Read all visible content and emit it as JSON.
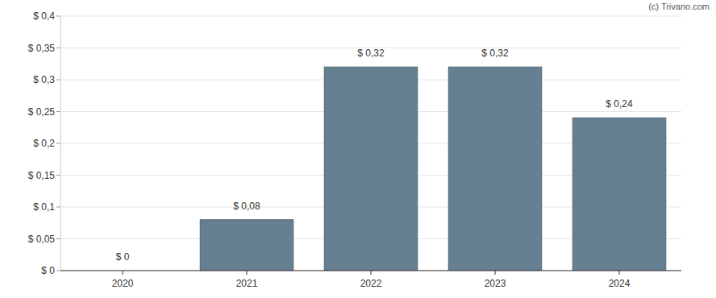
{
  "chart_data": {
    "type": "bar",
    "categories": [
      "2020",
      "2021",
      "2022",
      "2023",
      "2024"
    ],
    "values": [
      0,
      0.08,
      0.32,
      0.32,
      0.24
    ],
    "value_labels": [
      "$ 0",
      "$ 0,08",
      "$ 0,32",
      "$ 0,32",
      "$ 0,24"
    ],
    "data_labels": true,
    "color": "#667f91",
    "ylim": [
      0,
      0.4
    ],
    "yticks": [
      {
        "value": 0,
        "label": "$ 0"
      },
      {
        "value": 0.05,
        "label": "$ 0,05"
      },
      {
        "value": 0.1,
        "label": "$ 0,1"
      },
      {
        "value": 0.15,
        "label": "$ 0,15"
      },
      {
        "value": 0.2,
        "label": "$ 0,2"
      },
      {
        "value": 0.25,
        "label": "$ 0,25"
      },
      {
        "value": 0.3,
        "label": "$ 0,3"
      },
      {
        "value": 0.35,
        "label": "$ 0,35"
      },
      {
        "value": 0.4,
        "label": "$ 0,4"
      }
    ],
    "grid": true,
    "annotations": [
      "(c) Trivano.com"
    ]
  }
}
